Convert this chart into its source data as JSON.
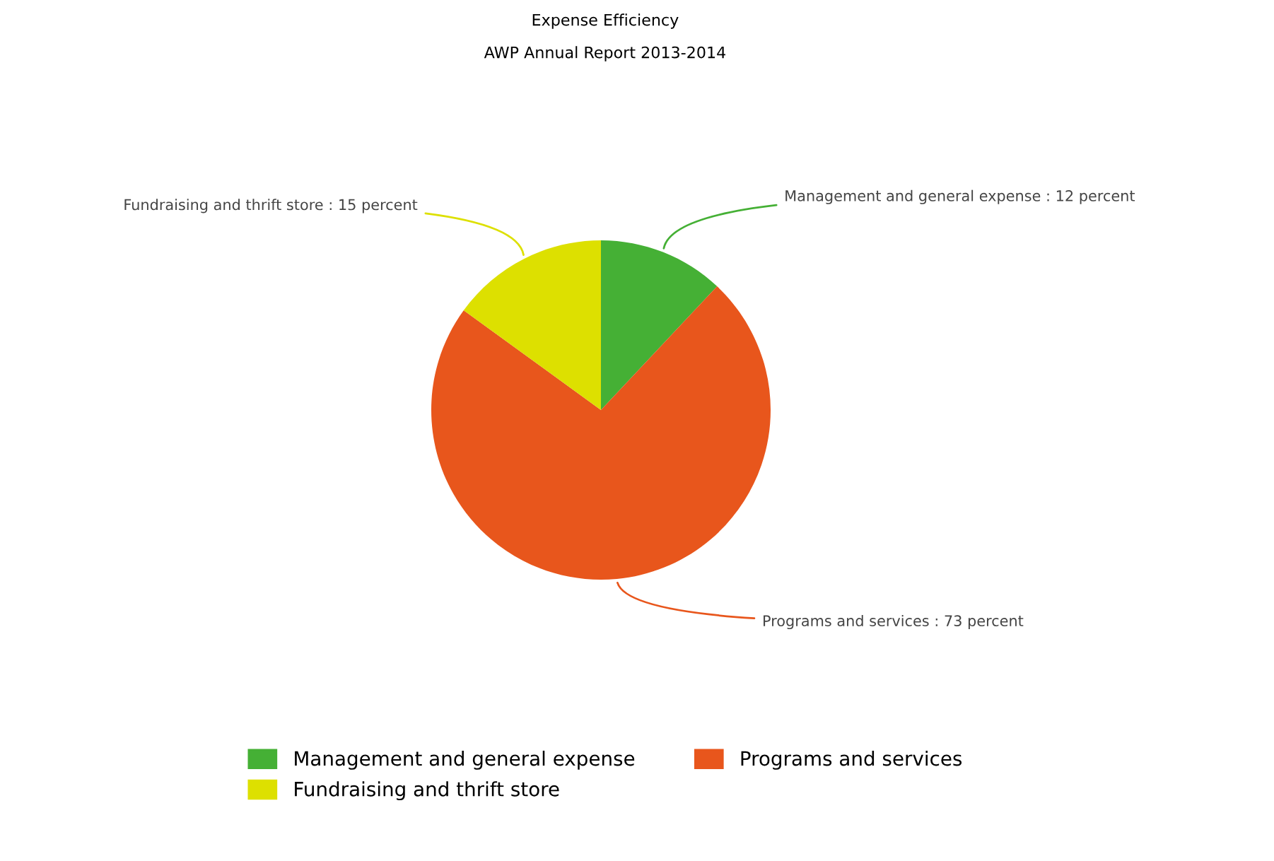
{
  "chart_data": {
    "type": "pie",
    "title": "Expense Efficiency",
    "subtitle": "AWP Annual Report 2013-2014",
    "categories": [
      "Management and general expense",
      "Programs and services",
      "Fundraising and thrift store"
    ],
    "values": [
      12,
      73,
      15
    ],
    "colors": [
      "#45b035",
      "#e8561c",
      "#dde000"
    ],
    "value_labels": [
      "Management and general expense : 12 percent",
      "Programs and services : 73 percent",
      "Fundraising and thrift store : 15 percent"
    ],
    "legend": "bottom"
  }
}
